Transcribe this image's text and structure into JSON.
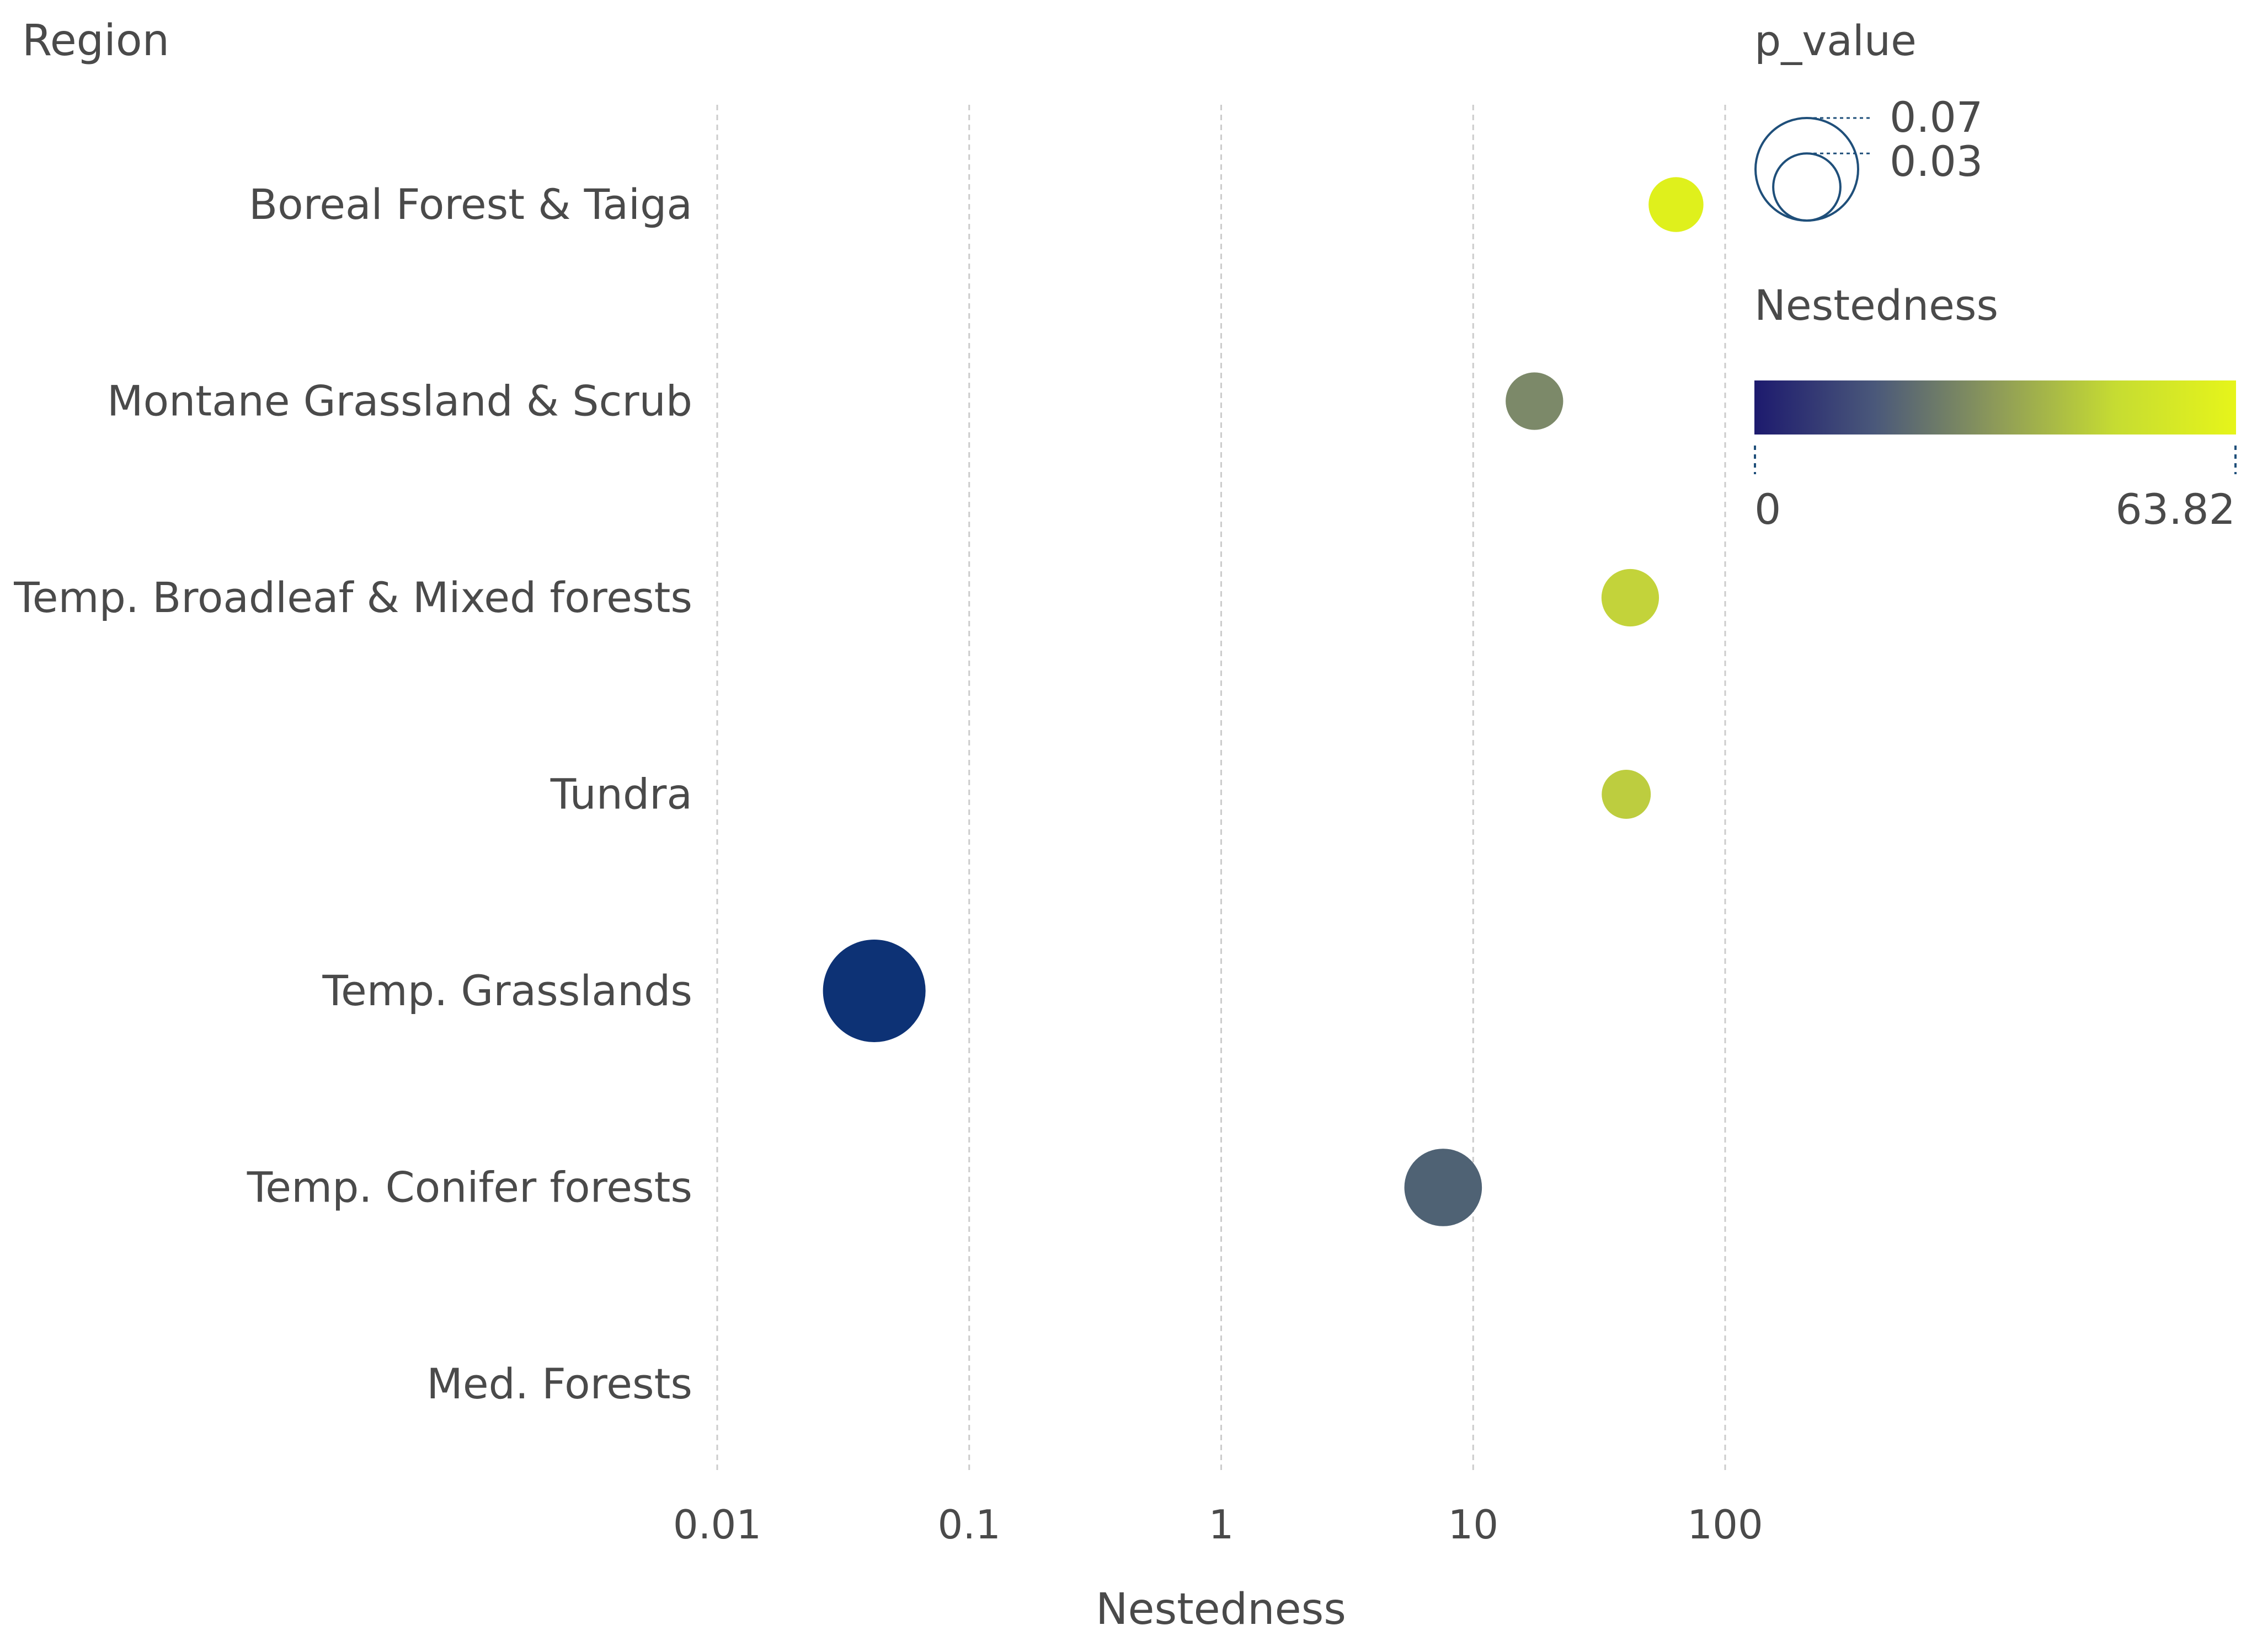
{
  "chart_data": {
    "type": "scatter",
    "title": "",
    "xlabel": "Nestedness",
    "ylabel": "Region",
    "x_scale": "log",
    "xlim": [
      0.01,
      100
    ],
    "x_ticks": [
      0.01,
      0.1,
      1,
      10,
      100
    ],
    "x_tick_labels": [
      "0.01",
      "0.1",
      "1",
      "10",
      "100"
    ],
    "grid": "vertical dashed",
    "categories": [
      "Boreal Forest & Taiga",
      "Montane Grassland & Scrub",
      "Temp. Broadleaf & Mixed forests",
      "Tundra",
      "Temp. Grasslands",
      "Temp. Conifer forests",
      "Med. Forests"
    ],
    "points": [
      {
        "region": "Boreal Forest & Taiga",
        "nestedness": 63.82,
        "p_value": 0.02,
        "color": "#dff01c"
      },
      {
        "region": "Montane Grassland & Scrub",
        "nestedness": 17.5,
        "p_value": 0.022,
        "color": "#7c8969"
      },
      {
        "region": "Temp. Broadleaf & Mixed forests",
        "nestedness": 42,
        "p_value": 0.022,
        "color": "#c3d33a"
      },
      {
        "region": "Tundra",
        "nestedness": 40.5,
        "p_value": 0.016,
        "color": "#bdcd3f"
      },
      {
        "region": "Temp. Grasslands",
        "nestedness": 0.042,
        "p_value": 0.07,
        "color": "#0d3275"
      },
      {
        "region": "Temp. Conifer forests",
        "nestedness": 7.6,
        "p_value": 0.04,
        "color": "#4f6274"
      }
    ],
    "size_legend": {
      "title": "p_value",
      "values": [
        0.07,
        0.03
      ],
      "labels": [
        "0.07",
        "0.03"
      ],
      "stroke": "#1f4f7a"
    },
    "color_legend": {
      "title": "Nestedness",
      "min": 0,
      "max": 63.82,
      "min_label": "0",
      "max_label": "63.82",
      "stops": [
        "#1d1a6e",
        "#4a587a",
        "#8d9a59",
        "#c6dc32",
        "#e6f51a"
      ]
    },
    "text_color": "#4a4a4a",
    "grid_color": "#cccccc"
  }
}
